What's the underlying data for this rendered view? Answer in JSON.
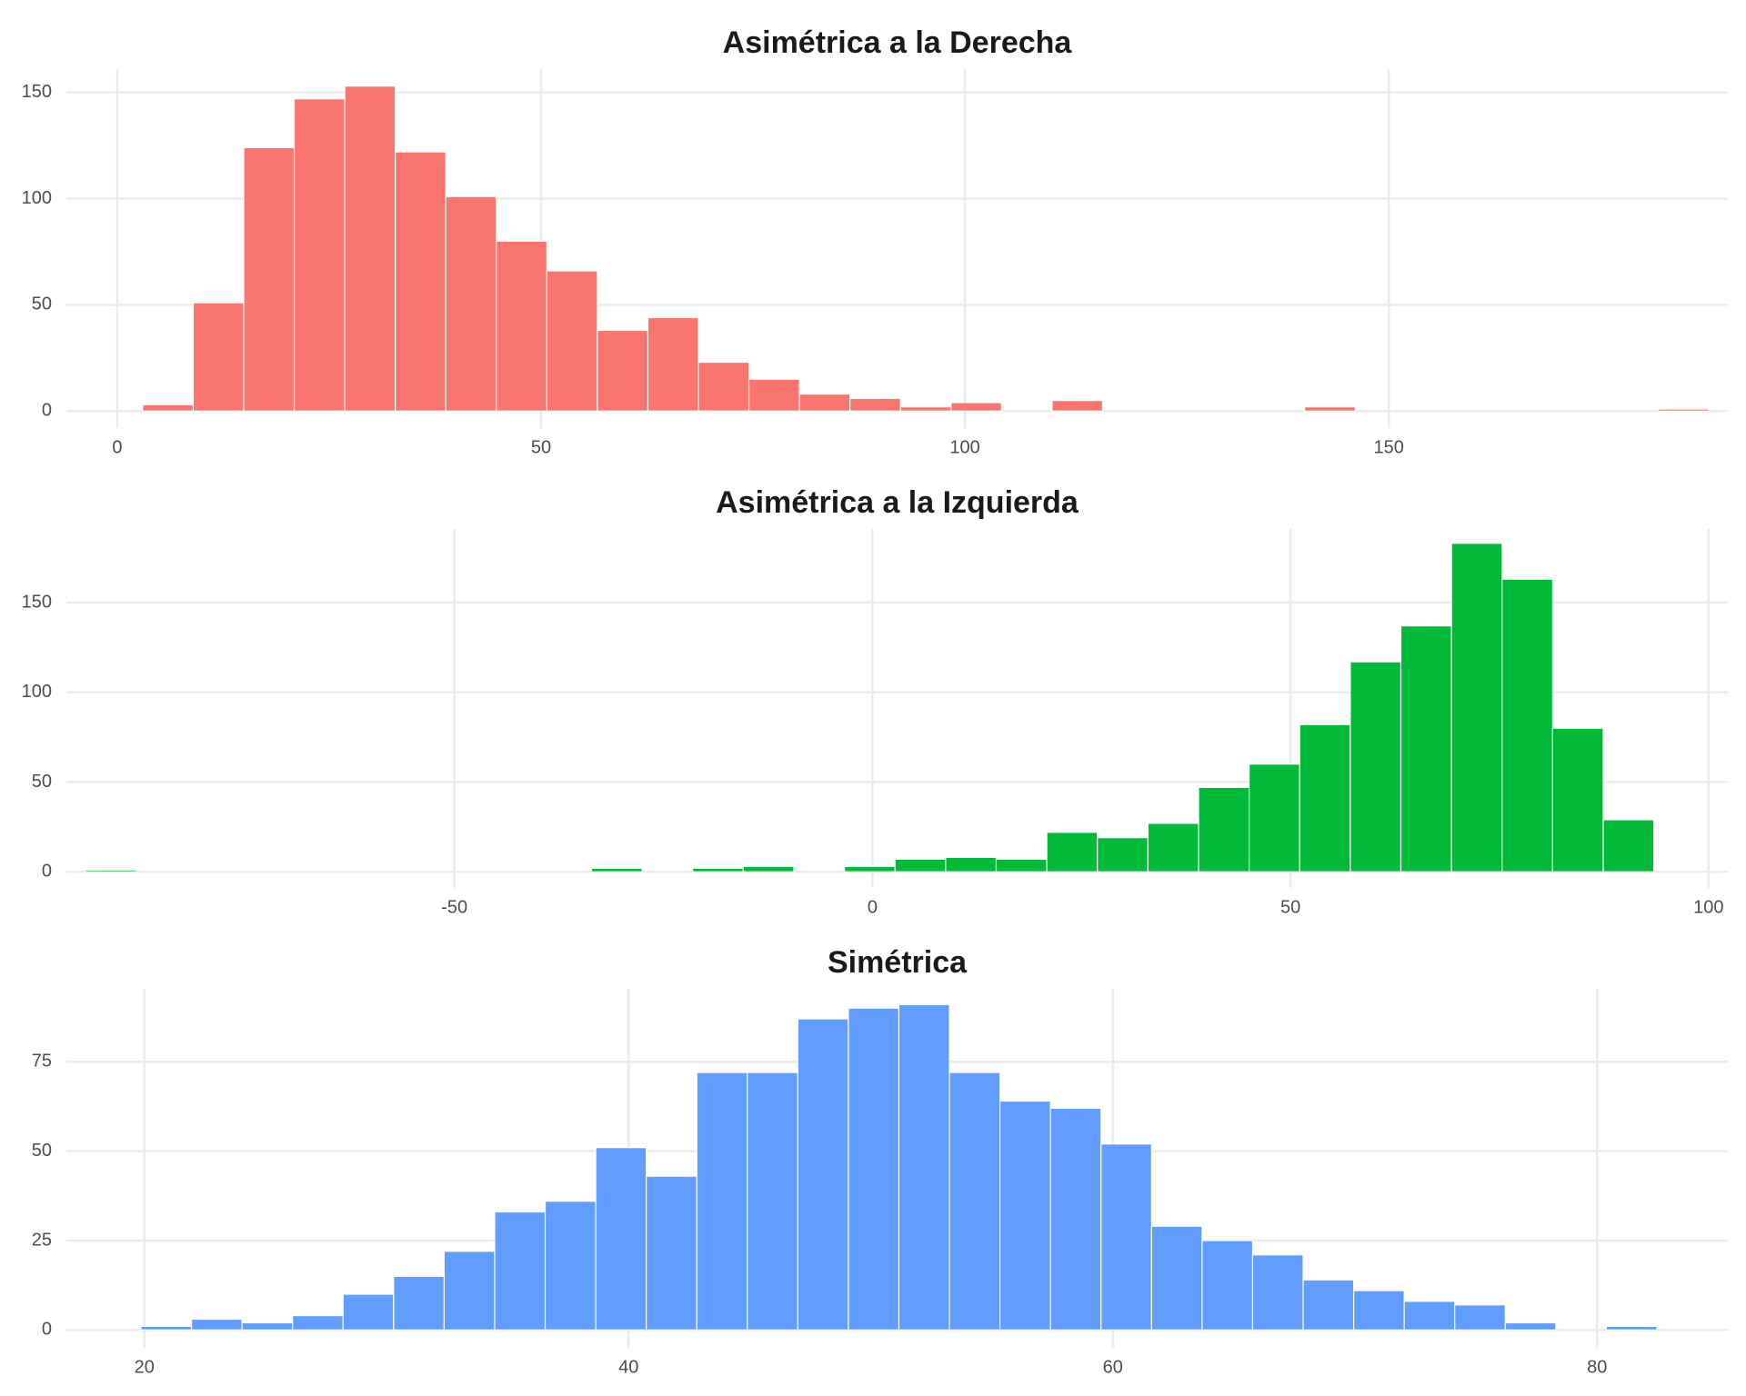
{
  "chart_data": [
    {
      "type": "histogram",
      "title": "Asimétrica a la Derecha",
      "color": "#F8766D",
      "grid": true,
      "bins": [
        3,
        8.96,
        14.92,
        20.88,
        26.84,
        32.8,
        38.76,
        44.72,
        50.68,
        56.64,
        62.6,
        68.56,
        74.52,
        80.48,
        86.44,
        92.4,
        98.36,
        104.32,
        110.28,
        116.24,
        122.2,
        128.16,
        134.12,
        140.08,
        146.04,
        152,
        157.96,
        163.92,
        169.88,
        175.84,
        181.8,
        187.76
      ],
      "counts": [
        3,
        51,
        124,
        147,
        153,
        122,
        101,
        80,
        66,
        38,
        44,
        23,
        15,
        8,
        6,
        2,
        4,
        0,
        5,
        0,
        0,
        0,
        0,
        2,
        0,
        0,
        0,
        0,
        0,
        0,
        1
      ],
      "xlim": [
        -6,
        190
      ],
      "ylim": [
        -8,
        161
      ],
      "xticks": [
        0,
        50,
        100,
        150
      ],
      "yticks": [
        0,
        50,
        100,
        150
      ]
    },
    {
      "type": "histogram",
      "title": "Asimétrica a la Izquierda",
      "color": "#00BA38",
      "grid": true,
      "bins": [
        -94.1,
        -88.05,
        -82,
        -75.95,
        -69.9,
        -63.85,
        -57.8,
        -51.75,
        -45.7,
        -39.65,
        -33.6,
        -27.55,
        -21.5,
        -15.45,
        -9.4,
        -3.35,
        2.7,
        8.75,
        14.8,
        20.85,
        26.9,
        32.95,
        39,
        45.05,
        51.1,
        57.15,
        63.2,
        69.25,
        75.3,
        81.35,
        87.4,
        93.45
      ],
      "counts": [
        1,
        0,
        0,
        0,
        0,
        0,
        0,
        0,
        0,
        0,
        2,
        0,
        2,
        3,
        0,
        3,
        7,
        8,
        7,
        22,
        19,
        27,
        47,
        60,
        82,
        117,
        137,
        183,
        163,
        80,
        29
      ],
      "xlim": [
        -96.4,
        102.3
      ],
      "ylim": [
        -9,
        191
      ],
      "xticks": [
        -50,
        0,
        50,
        100
      ],
      "yticks": [
        0,
        50,
        100,
        150
      ]
    },
    {
      "type": "histogram",
      "title": "Simétrica",
      "color": "#619CFF",
      "grid": true,
      "bins": [
        19.86,
        21.947,
        24.034,
        26.121,
        28.208,
        30.295,
        32.382,
        34.469,
        36.556,
        38.643,
        40.73,
        42.817,
        44.904,
        46.991,
        49.078,
        51.165,
        53.252,
        55.339,
        57.426,
        59.513,
        61.6,
        63.687,
        65.774,
        67.861,
        69.948,
        72.035,
        74.122,
        76.209,
        78.296,
        80.383,
        82.47
      ],
      "counts": [
        1,
        3,
        2,
        4,
        10,
        15,
        22,
        33,
        36,
        51,
        43,
        72,
        72,
        87,
        90,
        91,
        72,
        64,
        62,
        52,
        29,
        25,
        21,
        14,
        11,
        8,
        7,
        2,
        0,
        1
      ],
      "xlim": [
        16.78,
        85.4
      ],
      "ylim": [
        -5,
        95.4
      ],
      "xticks": [
        20,
        40,
        60,
        80
      ],
      "yticks": [
        0,
        25,
        50,
        75
      ]
    }
  ]
}
